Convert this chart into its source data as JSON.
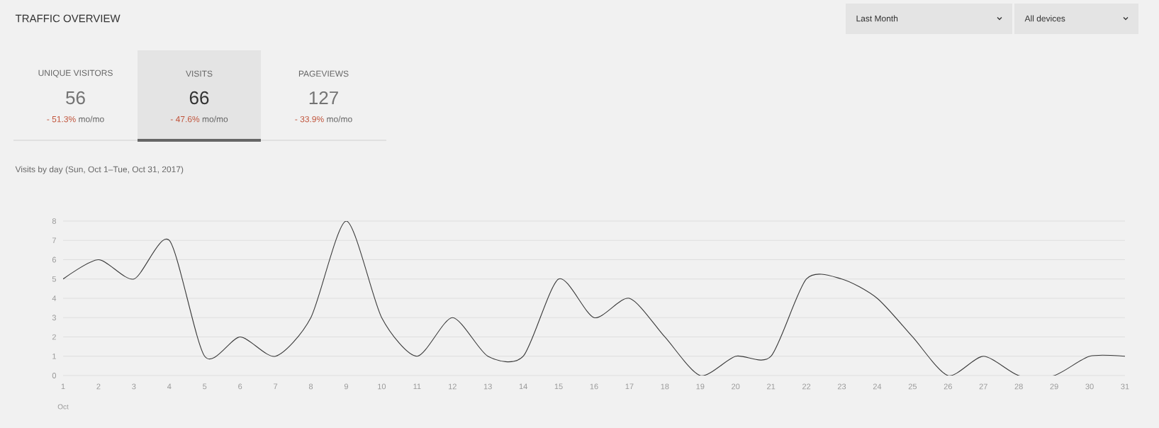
{
  "chart_data": {
    "type": "line",
    "title": "TRAFFIC OVERVIEW",
    "subtitle": "Visits by day (Sun, Oct 1–Tue, Oct 31, 2017)",
    "x": [
      1,
      2,
      3,
      4,
      5,
      6,
      7,
      8,
      9,
      10,
      11,
      12,
      13,
      14,
      15,
      16,
      17,
      18,
      19,
      20,
      21,
      22,
      23,
      24,
      25,
      26,
      27,
      28,
      29,
      30,
      31
    ],
    "series": [
      {
        "color": "#3a3a3a",
        "values": [
          5,
          6,
          5,
          7,
          1,
          2,
          1,
          3,
          8,
          3,
          1,
          3,
          1,
          1,
          5,
          3,
          4,
          2,
          0,
          1,
          1,
          5,
          5,
          4,
          2,
          0,
          1,
          0,
          0,
          1,
          1
        ]
      }
    ],
    "xlim": [
      1,
      31
    ],
    "ylim": [
      0,
      8
    ],
    "xticks": [
      1,
      2,
      3,
      4,
      5,
      6,
      7,
      8,
      9,
      10,
      11,
      12,
      13,
      14,
      15,
      16,
      17,
      18,
      19,
      20,
      21,
      22,
      23,
      24,
      25,
      26,
      27,
      28,
      29,
      30,
      31
    ],
    "yticks": [
      0,
      1,
      2,
      3,
      4,
      5,
      6,
      7,
      8
    ],
    "grid": "y",
    "marker": "none",
    "line_style": "solid",
    "annotations": [
      "Last Month",
      "All devices",
      "UNIQUE VISITORS",
      "56",
      "- 51.3%",
      "mo/mo",
      "VISITS",
      "66",
      "- 47.6%",
      "mo/mo",
      "PAGEVIEWS",
      "127",
      "- 33.9%",
      "mo/mo",
      "Oct"
    ]
  }
}
